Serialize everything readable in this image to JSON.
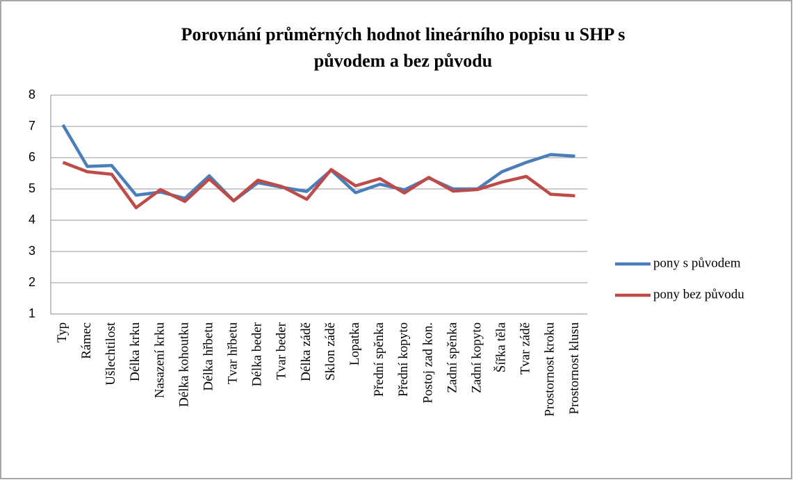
{
  "chart_data": {
    "type": "line",
    "title": [
      "Porovnání průměrných hodnot lineárního popisu u SHP s",
      "původem a bez původu"
    ],
    "categories": [
      "Typ",
      "Rámec",
      "Ušlechtilost",
      "Délka krku",
      "Nasazení krku",
      "Délka kohoutku",
      "Délka hřbetu",
      "Tvar hřbetu",
      "Délka beder",
      "Tvar beder",
      "Délka zádě",
      "Sklon zádě",
      "Lopatka",
      "Přední spěnka",
      "Přední kopyto",
      "Postoj zad kon.",
      "Zadní spěnka",
      "Zadní kopyto",
      "Šířka těla",
      "Tvar zádě",
      "Prostornost kroku",
      "Prostornost klusu"
    ],
    "series": [
      {
        "name": "pony s původem",
        "color": "#4a7ebb",
        "values": [
          7.05,
          5.72,
          5.75,
          4.8,
          4.9,
          4.7,
          5.42,
          4.62,
          5.2,
          5.05,
          4.92,
          5.6,
          4.88,
          5.15,
          4.97,
          5.35,
          5.0,
          5.0,
          5.55,
          5.85,
          6.1,
          6.05
        ]
      },
      {
        "name": "pony bez původu",
        "color": "#be4b48",
        "values": [
          5.85,
          5.55,
          5.47,
          4.4,
          4.98,
          4.6,
          5.32,
          4.62,
          5.28,
          5.07,
          4.67,
          5.62,
          5.1,
          5.33,
          4.87,
          5.37,
          4.93,
          4.98,
          5.22,
          5.4,
          4.83,
          4.78
        ]
      }
    ],
    "ylim": [
      1,
      8
    ],
    "yticks": [
      1,
      2,
      3,
      4,
      5,
      6,
      7,
      8
    ],
    "grid": true,
    "legend": "right"
  }
}
